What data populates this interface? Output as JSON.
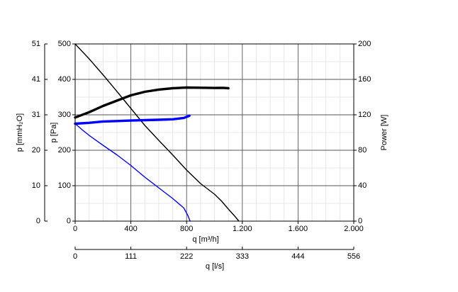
{
  "chart_data": {
    "type": "line",
    "axes": {
      "x_bottom": {
        "label": "q [m³/h]",
        "range": [
          0,
          2000
        ],
        "ticks": [
          "0",
          "400",
          "800",
          "1.200",
          "1.600",
          "2.000"
        ]
      },
      "x_secondary": {
        "label": "q [l/s]",
        "range": [
          0,
          556
        ],
        "ticks": [
          "0",
          "111",
          "222",
          "333",
          "444",
          "556"
        ]
      },
      "y_left_pa": {
        "label": "p [Pa]",
        "range": [
          0,
          500
        ],
        "ticks": [
          "0",
          "100",
          "200",
          "300",
          "400",
          "500"
        ]
      },
      "y_left_mmh2o": {
        "label": "p [mmH₂O]",
        "range": [
          0,
          51
        ],
        "ticks": [
          "0",
          "10",
          "20",
          "31",
          "41",
          "51"
        ]
      },
      "y_right_power": {
        "label": "Power [W]",
        "range": [
          0,
          200
        ],
        "ticks": [
          "0",
          "40",
          "80",
          "120",
          "160",
          "200"
        ]
      }
    },
    "grid": true,
    "series": [
      {
        "axis": "pressure",
        "color": "#000000",
        "width": 1.4,
        "points": [
          [
            0,
            500
          ],
          [
            100,
            458
          ],
          [
            200,
            413
          ],
          [
            300,
            366
          ],
          [
            400,
            318
          ],
          [
            500,
            270
          ],
          [
            600,
            228
          ],
          [
            700,
            187
          ],
          [
            800,
            144
          ],
          [
            900,
            106
          ],
          [
            1000,
            76
          ],
          [
            1050,
            57
          ],
          [
            1100,
            34
          ],
          [
            1150,
            12
          ],
          [
            1175,
            0
          ]
        ]
      },
      {
        "axis": "power",
        "color": "#000000",
        "width": 3.4,
        "points": [
          [
            0,
            117
          ],
          [
            100,
            123
          ],
          [
            200,
            130
          ],
          [
            300,
            136
          ],
          [
            400,
            142
          ],
          [
            500,
            146
          ],
          [
            600,
            148.5
          ],
          [
            700,
            150
          ],
          [
            800,
            150.8
          ],
          [
            900,
            150.6
          ],
          [
            1000,
            150.3
          ],
          [
            1060,
            150.5
          ],
          [
            1100,
            150
          ]
        ]
      },
      {
        "axis": "pressure",
        "color": "#0000ff",
        "width": 1.4,
        "points": [
          [
            0,
            275
          ],
          [
            50,
            258
          ],
          [
            100,
            242
          ],
          [
            200,
            214
          ],
          [
            300,
            187
          ],
          [
            400,
            157
          ],
          [
            500,
            124
          ],
          [
            600,
            94
          ],
          [
            700,
            64
          ],
          [
            780,
            37
          ],
          [
            810,
            15
          ],
          [
            825,
            0
          ]
        ]
      },
      {
        "axis": "power",
        "color": "#0000ff",
        "width": 3.4,
        "points": [
          [
            0,
            110
          ],
          [
            100,
            111
          ],
          [
            200,
            112.5
          ],
          [
            300,
            113
          ],
          [
            400,
            113.5
          ],
          [
            500,
            114
          ],
          [
            600,
            114.4
          ],
          [
            700,
            115
          ],
          [
            780,
            116.5
          ],
          [
            820,
            119
          ]
        ]
      }
    ]
  }
}
